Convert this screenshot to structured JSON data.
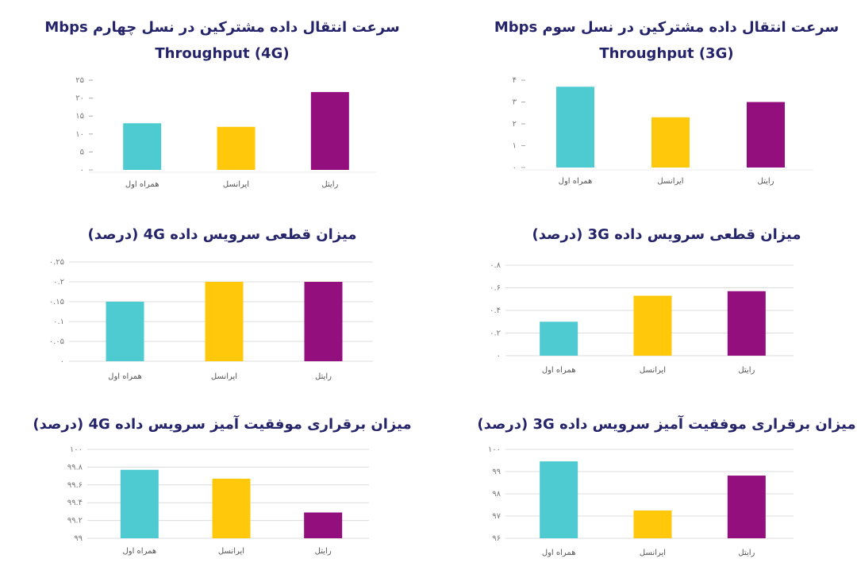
{
  "chart_data": [
    {
      "type": "bar",
      "title": "سرعت انتقال داده مشترکین در نسل چهارم Mbps",
      "subtitle": "Throughput (4G)",
      "categories": [
        "همراه اول",
        "ایرانسل",
        "رایتل"
      ],
      "values": [
        13,
        12,
        21.7
      ],
      "colors": [
        "#4ecbd0",
        "#ffc80a",
        "#930f7e"
      ],
      "ylim": [
        0,
        25
      ],
      "yticks": [
        {
          "value": 0,
          "label": "۰"
        },
        {
          "value": 5,
          "label": "۵"
        },
        {
          "value": 10,
          "label": "۱۰"
        },
        {
          "value": 15,
          "label": "۱۵"
        },
        {
          "value": 20,
          "label": "۲۰"
        },
        {
          "value": 25,
          "label": "۲۵"
        }
      ],
      "grid": false
    },
    {
      "type": "bar",
      "title": "سرعت انتقال داده مشترکین در نسل سوم Mbps",
      "subtitle": "Throughput (3G)",
      "categories": [
        "همراه اول",
        "ایرانسل",
        "رایتل"
      ],
      "values": [
        3.7,
        2.3,
        3.0
      ],
      "colors": [
        "#4ecbd0",
        "#ffc80a",
        "#930f7e"
      ],
      "ylim": [
        0,
        4
      ],
      "yticks": [
        {
          "value": 0,
          "label": "۰"
        },
        {
          "value": 1,
          "label": "۱"
        },
        {
          "value": 2,
          "label": "۲"
        },
        {
          "value": 3,
          "label": "۳"
        },
        {
          "value": 4,
          "label": "۴"
        }
      ],
      "grid": false
    },
    {
      "type": "bar",
      "title": "میزان قطعی سرویس داده 4G (درصد)",
      "categories": [
        "همراه اول",
        "ایرانسل",
        "رایتل"
      ],
      "values": [
        0.15,
        0.2,
        0.2
      ],
      "colors": [
        "#4ecbd0",
        "#ffc80a",
        "#930f7e"
      ],
      "ylim": [
        0,
        0.25
      ],
      "yticks": [
        {
          "value": 0,
          "label": "۰"
        },
        {
          "value": 0.05,
          "label": "۰.۰۵"
        },
        {
          "value": 0.1,
          "label": "۰.۱"
        },
        {
          "value": 0.15,
          "label": "۰.۱۵"
        },
        {
          "value": 0.2,
          "label": "۰.۲"
        },
        {
          "value": 0.25,
          "label": "۰.۲۵"
        }
      ],
      "grid": true
    },
    {
      "type": "bar",
      "title": "میزان قطعی سرویس داده 3G (درصد)",
      "categories": [
        "همراه اول",
        "ایرانسل",
        "رایتل"
      ],
      "values": [
        0.3,
        0.53,
        0.57
      ],
      "colors": [
        "#4ecbd0",
        "#ffc80a",
        "#930f7e"
      ],
      "ylim": [
        0,
        0.8
      ],
      "yticks": [
        {
          "value": 0,
          "label": "۰"
        },
        {
          "value": 0.2,
          "label": "۰.۲"
        },
        {
          "value": 0.4,
          "label": "۰.۴"
        },
        {
          "value": 0.6,
          "label": "۰.۶"
        },
        {
          "value": 0.8,
          "label": "۰.۸"
        }
      ],
      "grid": true
    },
    {
      "type": "bar",
      "title": "میزان برقراری موفقیت آمیز سرویس داده 4G (درصد)",
      "categories": [
        "همراه اول",
        "ایرانسل",
        "رایتل"
      ],
      "values": [
        99.77,
        99.67,
        99.29
      ],
      "colors": [
        "#4ecbd0",
        "#ffc80a",
        "#930f7e"
      ],
      "ylim": [
        99,
        100
      ],
      "yticks": [
        {
          "value": 99,
          "label": "۹۹"
        },
        {
          "value": 99.2,
          "label": "۹۹.۲"
        },
        {
          "value": 99.4,
          "label": "۹۹.۴"
        },
        {
          "value": 99.6,
          "label": "۹۹.۶"
        },
        {
          "value": 99.8,
          "label": "۹۹.۸"
        },
        {
          "value": 100,
          "label": "۱۰۰"
        }
      ],
      "grid": true
    },
    {
      "type": "bar",
      "title": "میزان برقراری موفقیت آمیز سرویس داده 3G (درصد)",
      "categories": [
        "همراه اول",
        "ایرانسل",
        "رایتل"
      ],
      "values": [
        99.46,
        97.25,
        98.82
      ],
      "colors": [
        "#4ecbd0",
        "#ffc80a",
        "#930f7e"
      ],
      "ylim": [
        96,
        100
      ],
      "yticks": [
        {
          "value": 96,
          "label": "۹۶"
        },
        {
          "value": 97,
          "label": "۹۷"
        },
        {
          "value": 98,
          "label": "۹۸"
        },
        {
          "value": 99,
          "label": "۹۹"
        },
        {
          "value": 100,
          "label": "۱۰۰"
        }
      ],
      "grid": true
    }
  ]
}
